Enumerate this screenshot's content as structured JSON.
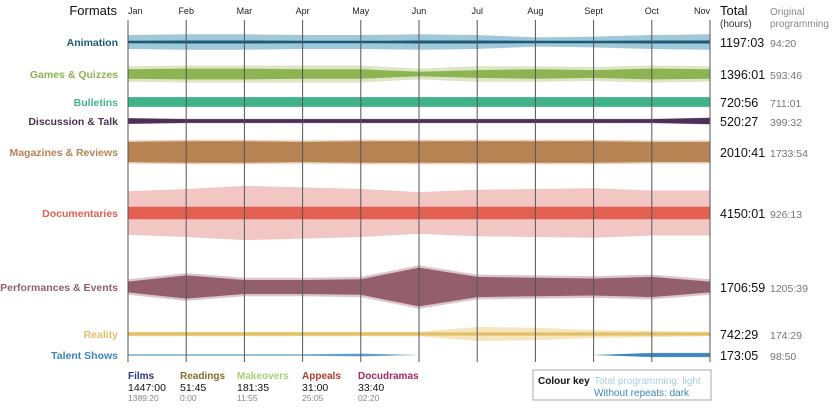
{
  "header": {
    "formats_label": "Formats",
    "total_label": "Total",
    "total_unit": "(hours)",
    "original_label_line1": "Original",
    "original_label_line2": "programming"
  },
  "chart_data": {
    "type": "area",
    "months": [
      "Jan",
      "Feb",
      "Mar",
      "Apr",
      "May",
      "Jun",
      "Jul",
      "Aug",
      "Sept",
      "Oct",
      "Nov"
    ],
    "formats": [
      {
        "name": "Animation",
        "color_dark": "#1e5a78",
        "color_light": "#9fc9d8",
        "total": "1197:03",
        "original": "94:20",
        "light": [
          9,
          10,
          10,
          9,
          9,
          10,
          9,
          6,
          7,
          9,
          10
        ],
        "dark": [
          1.5,
          2,
          2,
          1.5,
          1.5,
          2,
          2,
          1.5,
          1.5,
          2,
          2
        ]
      },
      {
        "name": "Games & Quizzes",
        "color_dark": "#8db352",
        "color_light": "#dbe6c4",
        "total": "1396:01",
        "original": "593:46",
        "light": [
          10,
          11,
          11,
          11,
          11,
          7,
          10,
          10,
          9,
          11,
          10
        ],
        "dark": [
          6,
          7,
          7,
          6,
          6,
          3,
          5,
          6,
          5,
          7,
          6
        ]
      },
      {
        "name": "Bulletins",
        "color_dark": "#41b38a",
        "color_light": "#41b38a",
        "total": "720:56",
        "original": "711:01",
        "light": [
          6,
          6,
          6,
          6,
          6,
          6,
          6,
          6,
          6,
          6,
          6
        ],
        "dark": [
          6,
          6,
          6,
          6,
          6,
          6,
          6,
          6,
          6,
          6,
          6
        ]
      },
      {
        "name": "Discussion & Talk",
        "color_dark": "#4c3057",
        "color_light": "#c7b8cc",
        "total": "520:27",
        "original": "399:32",
        "light": [
          4,
          3,
          3,
          3,
          3,
          3,
          3,
          3,
          3,
          3,
          4.5
        ],
        "dark": [
          3.5,
          2.5,
          2.5,
          2.5,
          2.5,
          2.5,
          2.5,
          2.5,
          2.5,
          2.5,
          4
        ]
      },
      {
        "name": "Magazines & Reviews",
        "color_dark": "#b88352",
        "color_light": "#e6d3c1",
        "total": "2010:41",
        "original": "1733:54",
        "light": [
          15,
          16,
          16,
          15,
          16,
          16,
          16,
          16,
          16,
          15,
          15
        ],
        "dark": [
          13,
          14,
          14,
          13,
          14,
          14,
          14,
          14,
          14,
          13,
          13
        ]
      },
      {
        "name": "Documentaries",
        "color_dark": "#e35f52",
        "color_light": "#f2c6c2",
        "total": "4150:01",
        "original": "926:13",
        "light": [
          28,
          31,
          35,
          33,
          31,
          27,
          30,
          31,
          32,
          29,
          29
        ],
        "dark": [
          8,
          8,
          8,
          8,
          8,
          8,
          8,
          8,
          8,
          8,
          8
        ]
      },
      {
        "name": "Performances & Events",
        "color_dark": "#935f6a",
        "color_light": "#dcc6cb",
        "total": "1706:59",
        "original": "1205:39",
        "light": [
          10,
          18,
          12,
          12,
          13,
          28,
          16,
          15,
          14,
          16,
          10
        ],
        "dark": [
          7,
          15,
          9,
          9,
          10,
          25,
          13,
          12,
          11,
          13,
          7
        ]
      },
      {
        "name": "Reality",
        "color_dark": "#e3bf6a",
        "color_light": "#f5e6bd",
        "total": "742:29",
        "original": "174:29",
        "light": [
          3,
          3,
          3,
          3,
          3,
          3,
          9,
          8,
          5,
          4,
          3
        ],
        "dark": [
          2,
          2,
          2,
          2,
          2,
          2,
          2,
          2,
          2,
          2,
          2
        ]
      },
      {
        "name": "Talent Shows",
        "color_dark": "#3d86b8",
        "color_light": "#a9cde0",
        "total": "173:05",
        "original": "98:50",
        "light": [
          1,
          1,
          1,
          1,
          2,
          0,
          0,
          0,
          0,
          3,
          3
        ],
        "dark": [
          0.5,
          0.5,
          0.5,
          0.5,
          1,
          0,
          0,
          0,
          0,
          2.5,
          2.5
        ]
      }
    ],
    "films": [
      {
        "name": "Films",
        "color": "#2a3a7a",
        "total": "1447:00",
        "original": "1389:20"
      },
      {
        "name": "Readings",
        "color": "#8a6b2e",
        "total": "51:45",
        "original": "0:00"
      },
      {
        "name": "Makeovers",
        "color": "#a8cf7a",
        "total": "181:35",
        "original": "11:55"
      },
      {
        "name": "Appeals",
        "color": "#b83a2e",
        "total": "31:00",
        "original": "25:05"
      },
      {
        "name": "Docudramas",
        "color": "#a8285e",
        "total": "33:40",
        "original": "02:20"
      }
    ]
  },
  "colour_key": {
    "title": "Colour key",
    "light_text": "Total programming: light",
    "dark_text": "Without repeats: dark"
  }
}
